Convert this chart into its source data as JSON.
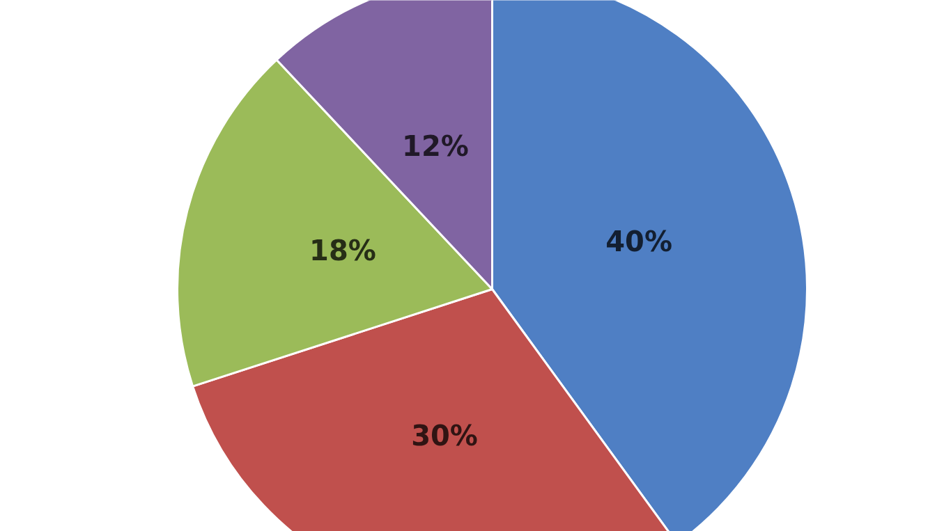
{
  "chart_data": {
    "type": "pie",
    "categories": [
      null,
      null,
      null,
      null
    ],
    "values": [
      40,
      30,
      18,
      12
    ],
    "colors": [
      "#4f7fc4",
      "#c0504d",
      "#9bbb59",
      "#8064a2"
    ],
    "value_labels": [
      "40%",
      "30%",
      "18%",
      "12%"
    ]
  }
}
